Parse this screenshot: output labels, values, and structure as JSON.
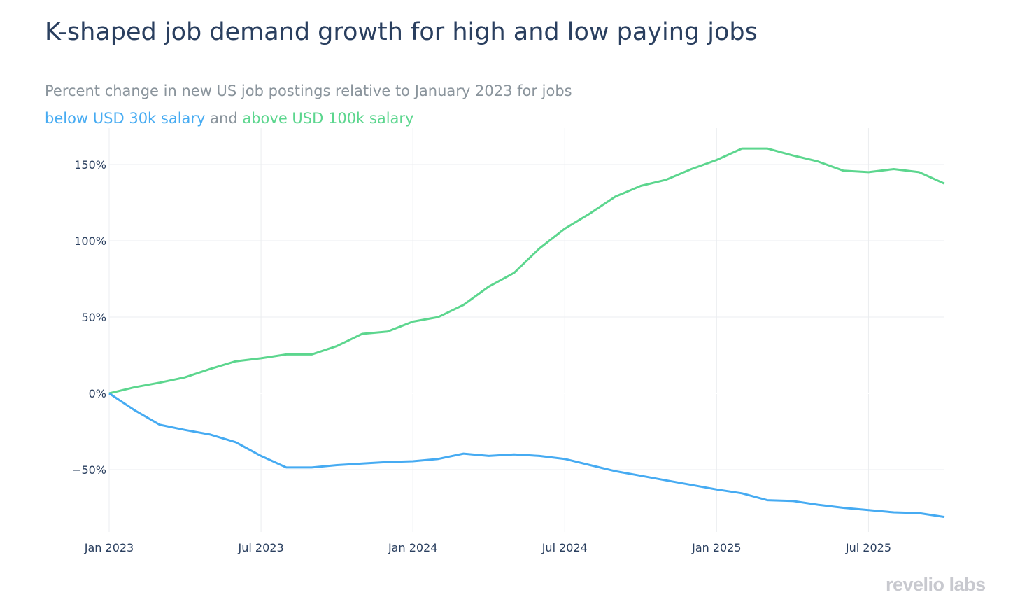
{
  "chart_data": {
    "type": "line",
    "title": "K-shaped job demand growth for high and low paying jobs",
    "subtitle": {
      "line1": "Percent change in new US job postings relative to January 2023 for jobs",
      "low_label": "below USD 30k salary",
      "connector": "and",
      "high_label": "above USD 100k salary"
    },
    "xlabel": "",
    "ylabel": "",
    "x": [
      "2023-01",
      "2023-02",
      "2023-03",
      "2023-04",
      "2023-05",
      "2023-06",
      "2023-07",
      "2023-08",
      "2023-09",
      "2023-10",
      "2023-11",
      "2023-12",
      "2024-01",
      "2024-02",
      "2024-03",
      "2024-04",
      "2024-05",
      "2024-06",
      "2024-07",
      "2024-08",
      "2024-09",
      "2024-10",
      "2024-11",
      "2024-12",
      "2025-01",
      "2025-02",
      "2025-03",
      "2025-04",
      "2025-05",
      "2025-06",
      "2025-07",
      "2025-08",
      "2025-09",
      "2025-10"
    ],
    "x_ticks": [
      {
        "label": "Jan 2023",
        "x": "2023-01"
      },
      {
        "label": "Jul 2023",
        "x": "2023-07"
      },
      {
        "label": "Jan 2024",
        "x": "2024-01"
      },
      {
        "label": "Jul 2024",
        "x": "2024-07"
      },
      {
        "label": "Jan 2025",
        "x": "2025-01"
      },
      {
        "label": "Jul 2025",
        "x": "2025-07"
      }
    ],
    "y_ticks": [
      {
        "label": "150%",
        "v": 150
      },
      {
        "label": "100%",
        "v": 100
      },
      {
        "label": "50%",
        "v": 50
      },
      {
        "label": "0%",
        "v": 0
      },
      {
        "label": "−50%",
        "v": -50
      }
    ],
    "ylim": [
      -90,
      174
    ],
    "grid": true,
    "legend": "none (colored subtitle text)",
    "series": [
      {
        "key": "high",
        "color": "#5cd68e",
        "values": [
          0,
          4,
          7,
          10.5,
          16,
          21,
          23,
          25.5,
          25.5,
          31,
          39,
          40.5,
          47,
          50,
          58,
          70,
          79,
          95,
          108,
          118,
          129,
          136,
          140,
          147,
          153,
          160.5,
          160.5,
          156,
          152,
          146,
          145,
          147,
          145,
          137.5
        ]
      },
      {
        "key": "low",
        "color": "#46abf2",
        "values": [
          0,
          -11,
          -20.6,
          -24,
          -27,
          -32,
          -41,
          -48.6,
          -48.6,
          -47,
          -46,
          -45,
          -44.5,
          -43,
          -39.5,
          -41,
          -40,
          -41,
          -43,
          -47,
          -51,
          -54,
          -57,
          -60,
          -63,
          -65.5,
          -70,
          -70.5,
          -73,
          -75,
          -76.5,
          -78,
          -78.5,
          -81
        ]
      }
    ]
  },
  "branding": {
    "logo": "revelio labs"
  }
}
